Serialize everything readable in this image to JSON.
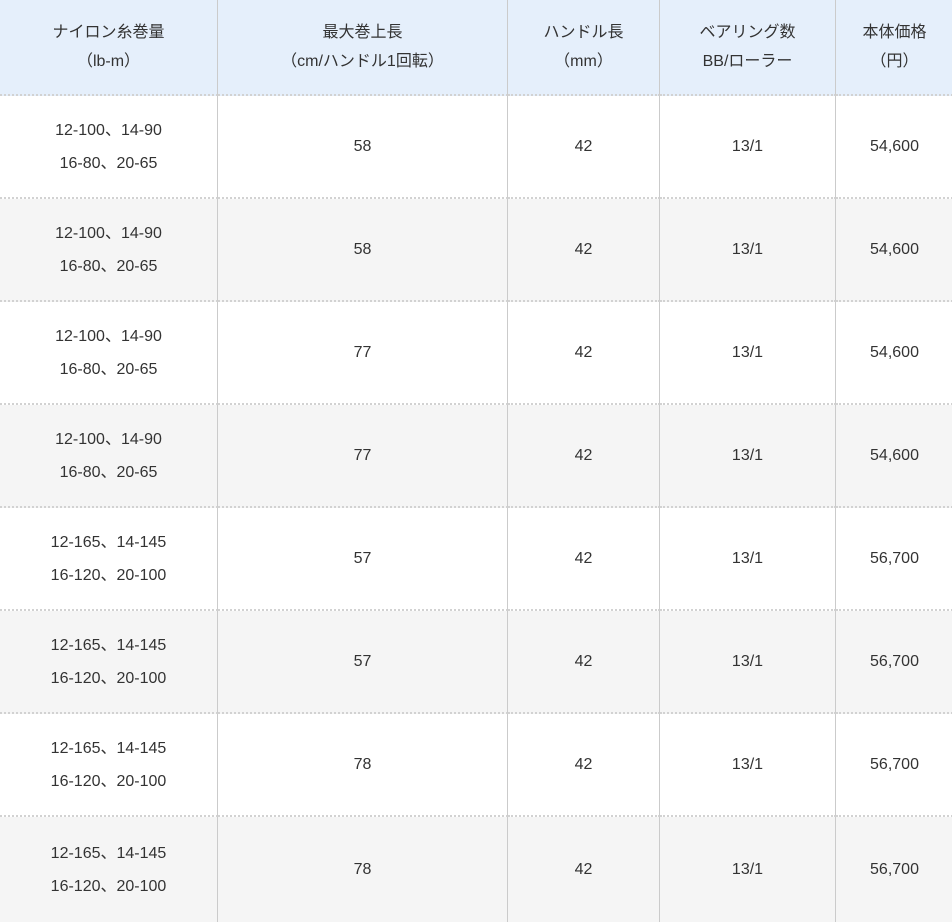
{
  "table": {
    "headers": [
      {
        "line1": "ナイロン糸巻量",
        "line2": "（lb-m）"
      },
      {
        "line1": "最大巻上長",
        "line2": "（cm/ハンドル1回転）"
      },
      {
        "line1": "ハンドル長",
        "line2": "（mm）"
      },
      {
        "line1": "ベアリング数",
        "line2": "BB/ローラー"
      },
      {
        "line1": "本体価格",
        "line2": "（円）"
      }
    ],
    "rows": [
      {
        "capacity_line1": "12-100、14-90",
        "capacity_line2": "16-80、20-65",
        "max_winding": "58",
        "handle_length": "42",
        "bearings": "13/1",
        "price": "54,600"
      },
      {
        "capacity_line1": "12-100、14-90",
        "capacity_line2": "16-80、20-65",
        "max_winding": "58",
        "handle_length": "42",
        "bearings": "13/1",
        "price": "54,600"
      },
      {
        "capacity_line1": "12-100、14-90",
        "capacity_line2": "16-80、20-65",
        "max_winding": "77",
        "handle_length": "42",
        "bearings": "13/1",
        "price": "54,600"
      },
      {
        "capacity_line1": "12-100、14-90",
        "capacity_line2": "16-80、20-65",
        "max_winding": "77",
        "handle_length": "42",
        "bearings": "13/1",
        "price": "54,600"
      },
      {
        "capacity_line1": "12-165、14-145",
        "capacity_line2": "16-120、20-100",
        "max_winding": "57",
        "handle_length": "42",
        "bearings": "13/1",
        "price": "56,700"
      },
      {
        "capacity_line1": "12-165、14-145",
        "capacity_line2": "16-120、20-100",
        "max_winding": "57",
        "handle_length": "42",
        "bearings": "13/1",
        "price": "56,700"
      },
      {
        "capacity_line1": "12-165、14-145",
        "capacity_line2": "16-120、20-100",
        "max_winding": "78",
        "handle_length": "42",
        "bearings": "13/1",
        "price": "56,700"
      },
      {
        "capacity_line1": "12-165、14-145",
        "capacity_line2": "16-120、20-100",
        "max_winding": "78",
        "handle_length": "42",
        "bearings": "13/1",
        "price": "56,700"
      }
    ]
  },
  "colors": {
    "header_bg": "#e5effb",
    "row_alt_bg": "#f5f5f5",
    "vertical_border": "#cbcbcb",
    "dotted_border": "#d2d2d2",
    "text": "#333333"
  }
}
